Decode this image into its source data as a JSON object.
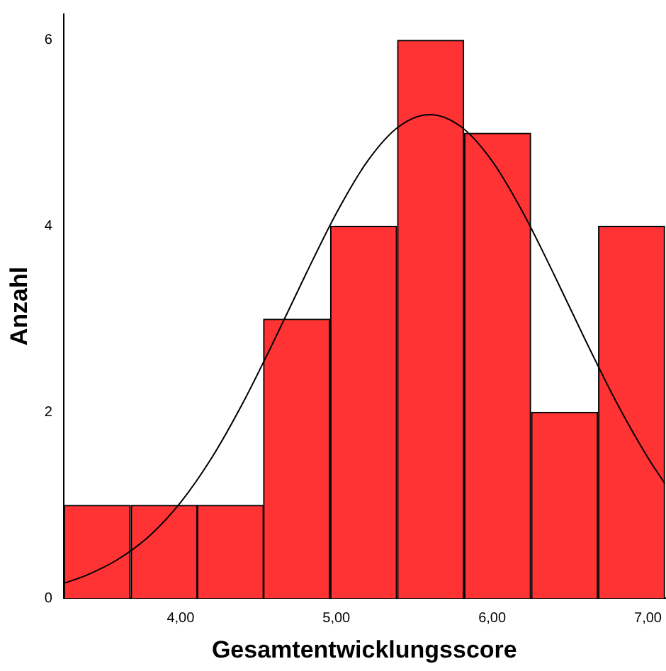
{
  "chart_data": {
    "type": "histogram",
    "xlabel": "Gesamtentwicklungsscore",
    "ylabel": "Anzahl",
    "bins": [
      3.25,
      3.68,
      4.11,
      4.53,
      4.96,
      5.39,
      5.82,
      6.25,
      6.68,
      7.11
    ],
    "values": [
      1,
      1,
      1,
      3,
      4,
      6,
      5,
      2,
      4
    ],
    "color": "#ff3333",
    "series": [
      {
        "type": "line",
        "color": "#000000",
        "x": [
          3.25,
          3.4,
          3.6,
          3.8,
          4.0,
          4.2,
          4.4,
          4.6,
          4.8,
          5.0,
          5.2,
          5.4,
          5.6,
          5.8,
          6.0,
          6.2,
          6.4,
          6.6,
          6.8,
          7.0,
          7.11
        ],
        "values": [
          0.16,
          0.25,
          0.42,
          0.67,
          1.03,
          1.51,
          2.1,
          2.77,
          3.47,
          4.14,
          4.7,
          5.07,
          5.2,
          5.07,
          4.7,
          4.14,
          3.47,
          2.77,
          2.1,
          1.51,
          1.23
        ]
      }
    ],
    "xlim": [
      3.25,
      7.11
    ],
    "xticks": [
      {
        "value": 4,
        "label": "4,00"
      },
      {
        "value": 5,
        "label": "5,00"
      },
      {
        "value": 6,
        "label": "6,00"
      },
      {
        "value": 7,
        "label": "7,00"
      }
    ],
    "ylim": [
      0,
      6.28
    ],
    "yticks": [
      0,
      2,
      4,
      6
    ],
    "grid": false,
    "legend": false,
    "marker": "none"
  }
}
